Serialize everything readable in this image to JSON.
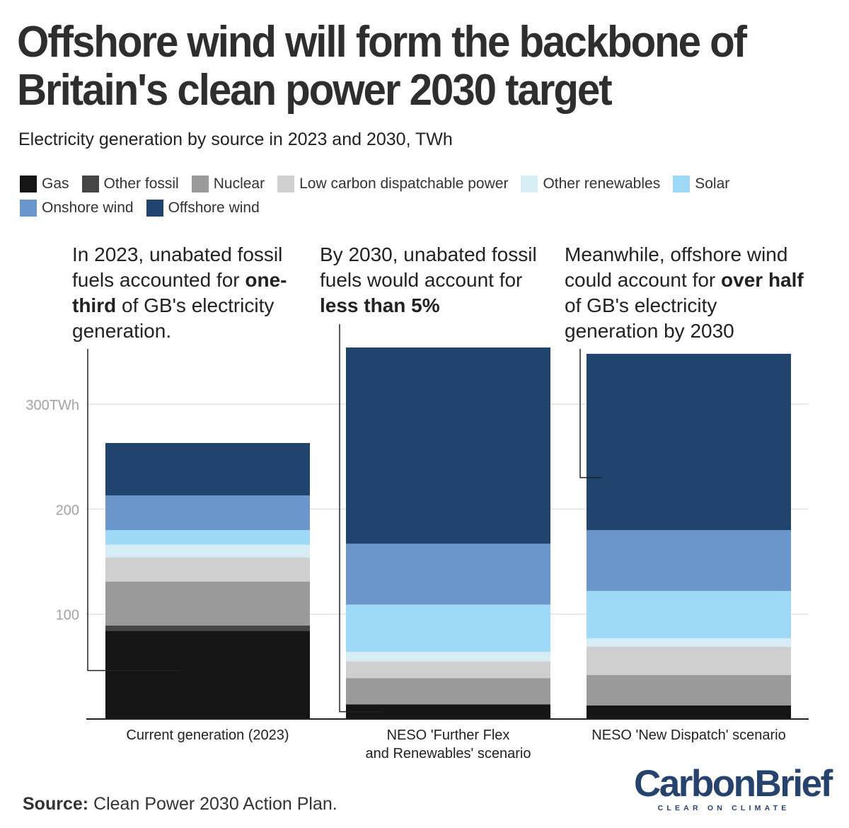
{
  "title": "Offshore wind will form the backbone of Britain's clean power 2030 target",
  "subtitle": "Electricity generation by source in 2023 and 2030, TWh",
  "source": {
    "label": "Source:",
    "text": "Clean Power 2030 Action Plan."
  },
  "logo": {
    "name": "CarbonBrief",
    "tagline": "CLEAR ON CLIMATE"
  },
  "annotations": [
    {
      "before": "In 2023, unabated fossil fuels accounted for",
      "bold": "one-third",
      "after": "of GB's electricity generation."
    },
    {
      "before": "By 2030, unabated fossil fuels would account for",
      "bold": "less than 5%",
      "after": ""
    },
    {
      "before": "Meanwhile, offshore wind could account for",
      "bold": "over half",
      "after": "of GB's electricity generation by 2030"
    }
  ],
  "chart_data": {
    "type": "bar",
    "stacked": true,
    "categories": [
      "Current generation (2023)",
      "NESO 'Further Flex and Renewables' scenario",
      "NESO 'New Dispatch' scenario"
    ],
    "series": [
      {
        "name": "Gas",
        "color": "#151515",
        "values": [
          84,
          14,
          13
        ]
      },
      {
        "name": "Other fossil",
        "color": "#454545",
        "values": [
          5,
          0,
          0
        ]
      },
      {
        "name": "Nuclear",
        "color": "#9a9a9a",
        "values": [
          42,
          25,
          29
        ]
      },
      {
        "name": "Low carbon dispatchable power",
        "color": "#cfcfcf",
        "values": [
          23,
          16,
          27
        ]
      },
      {
        "name": "Other renewables",
        "color": "#d7edf5",
        "values": [
          12,
          9,
          8
        ]
      },
      {
        "name": "Solar",
        "color": "#9fd9f8",
        "values": [
          14,
          45,
          45
        ]
      },
      {
        "name": "Onshore wind",
        "color": "#6a96cc",
        "values": [
          33,
          58,
          58
        ]
      },
      {
        "name": "Offshore wind",
        "color": "#21446f",
        "values": [
          50,
          187,
          168
        ]
      }
    ],
    "y_ticks": [
      {
        "value": 100,
        "label": "100"
      },
      {
        "value": 200,
        "label": "200"
      },
      {
        "value": 300,
        "label": "300TWh"
      }
    ],
    "ylim": [
      0,
      354
    ],
    "grid": true,
    "legend": "top-left"
  }
}
